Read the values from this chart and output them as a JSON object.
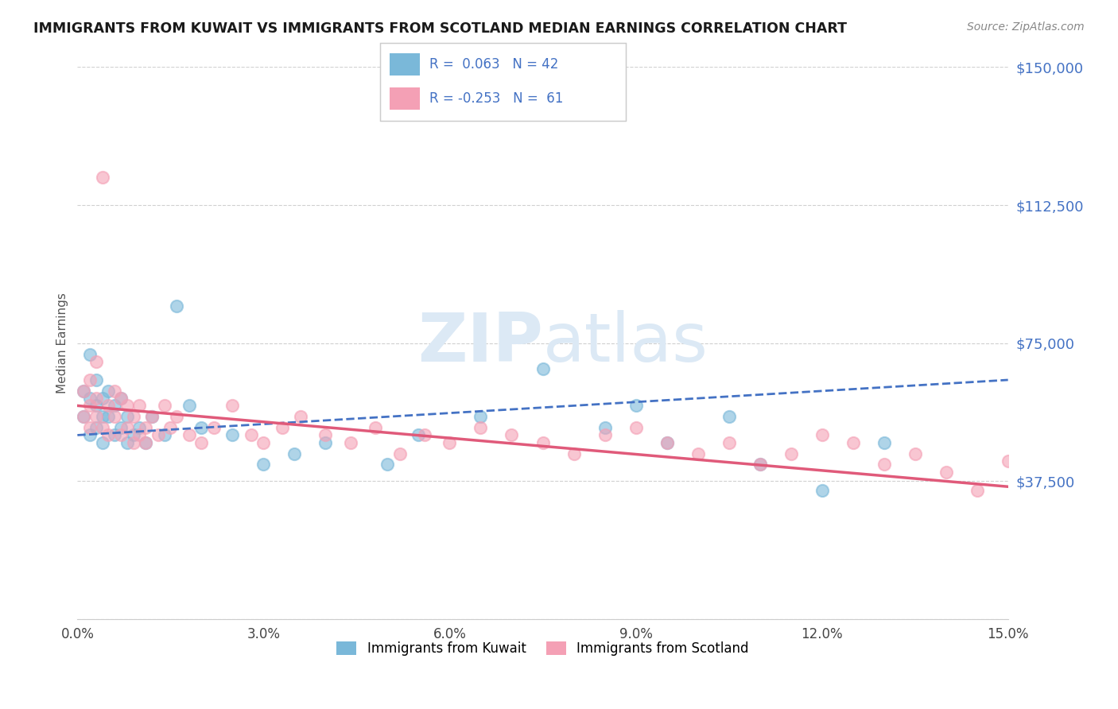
{
  "title": "IMMIGRANTS FROM KUWAIT VS IMMIGRANTS FROM SCOTLAND MEDIAN EARNINGS CORRELATION CHART",
  "source": "Source: ZipAtlas.com",
  "ylabel": "Median Earnings",
  "xlim": [
    0.0,
    0.15
  ],
  "ylim": [
    0,
    150000
  ],
  "yticks": [
    0,
    37500,
    75000,
    112500,
    150000
  ],
  "ytick_labels": [
    "",
    "$37,500",
    "$75,000",
    "$112,500",
    "$150,000"
  ],
  "xtick_labels": [
    "0.0%",
    "3.0%",
    "6.0%",
    "9.0%",
    "12.0%",
    "15.0%"
  ],
  "xticks": [
    0.0,
    0.03,
    0.06,
    0.09,
    0.12,
    0.15
  ],
  "kuwait_R": 0.063,
  "kuwait_N": 42,
  "scotland_R": -0.253,
  "scotland_N": 61,
  "kuwait_color": "#7ab8d9",
  "scotland_color": "#f4a0b5",
  "kuwait_line_color": "#4472c4",
  "scotland_line_color": "#e05a7a",
  "title_color": "#1a1a1a",
  "axis_label_color": "#555555",
  "ytick_color": "#4472c4",
  "xtick_color": "#444444",
  "grid_color": "#d0d0d0",
  "legend_text_color": "#4472c4",
  "watermark_color": "#dce9f5",
  "background_color": "#ffffff",
  "kuwait_trend": [
    50000,
    65000
  ],
  "scotland_trend": [
    58000,
    36000
  ],
  "kuwait_x": [
    0.001,
    0.001,
    0.002,
    0.002,
    0.002,
    0.003,
    0.003,
    0.003,
    0.004,
    0.004,
    0.004,
    0.005,
    0.005,
    0.006,
    0.006,
    0.007,
    0.007,
    0.008,
    0.008,
    0.009,
    0.01,
    0.011,
    0.012,
    0.014,
    0.016,
    0.018,
    0.02,
    0.025,
    0.03,
    0.035,
    0.04,
    0.05,
    0.055,
    0.065,
    0.075,
    0.085,
    0.09,
    0.095,
    0.105,
    0.11,
    0.12,
    0.13
  ],
  "kuwait_y": [
    55000,
    62000,
    72000,
    50000,
    60000,
    58000,
    52000,
    65000,
    55000,
    60000,
    48000,
    55000,
    62000,
    50000,
    58000,
    52000,
    60000,
    48000,
    55000,
    50000,
    52000,
    48000,
    55000,
    50000,
    85000,
    58000,
    52000,
    50000,
    42000,
    45000,
    48000,
    42000,
    50000,
    55000,
    68000,
    52000,
    58000,
    48000,
    55000,
    42000,
    35000,
    48000
  ],
  "scotland_x": [
    0.001,
    0.001,
    0.002,
    0.002,
    0.002,
    0.003,
    0.003,
    0.003,
    0.004,
    0.004,
    0.005,
    0.005,
    0.006,
    0.006,
    0.007,
    0.007,
    0.008,
    0.008,
    0.009,
    0.009,
    0.01,
    0.01,
    0.011,
    0.011,
    0.012,
    0.013,
    0.014,
    0.015,
    0.016,
    0.018,
    0.02,
    0.022,
    0.025,
    0.028,
    0.03,
    0.033,
    0.036,
    0.04,
    0.044,
    0.048,
    0.052,
    0.056,
    0.06,
    0.065,
    0.07,
    0.075,
    0.08,
    0.085,
    0.09,
    0.095,
    0.1,
    0.105,
    0.11,
    0.115,
    0.12,
    0.125,
    0.13,
    0.135,
    0.14,
    0.145,
    0.15
  ],
  "scotland_y": [
    62000,
    55000,
    58000,
    65000,
    52000,
    60000,
    55000,
    70000,
    52000,
    120000,
    58000,
    50000,
    62000,
    55000,
    50000,
    60000,
    52000,
    58000,
    48000,
    55000,
    50000,
    58000,
    52000,
    48000,
    55000,
    50000,
    58000,
    52000,
    55000,
    50000,
    48000,
    52000,
    58000,
    50000,
    48000,
    52000,
    55000,
    50000,
    48000,
    52000,
    45000,
    50000,
    48000,
    52000,
    50000,
    48000,
    45000,
    50000,
    52000,
    48000,
    45000,
    48000,
    42000,
    45000,
    50000,
    48000,
    42000,
    45000,
    40000,
    35000,
    43000
  ]
}
